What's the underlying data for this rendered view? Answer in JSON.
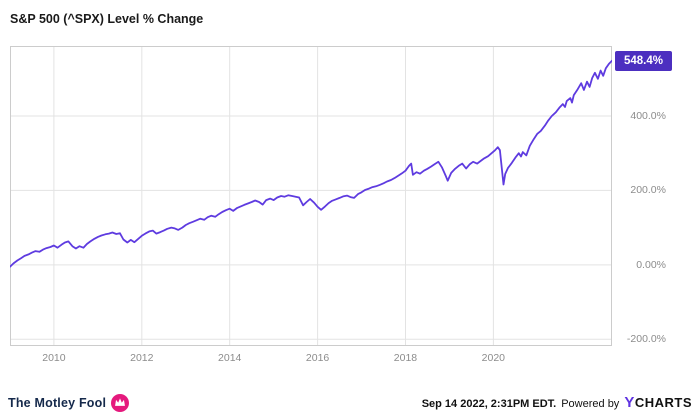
{
  "title": "S&P 500 (^SPX) Level % Change",
  "badge": {
    "label": "548.4%"
  },
  "footer": {
    "brand": "The Motley Fool",
    "timestamp": "Sep 14 2022, 2:31PM EDT.",
    "powered_by": "Powered by",
    "ycharts_y": "Y",
    "ycharts_rest": "CHARTS"
  },
  "colors": {
    "line": "#5E3BE0",
    "badge_bg": "#4C2FC0",
    "grid": "#E3E3E3",
    "border": "#CCCCCC",
    "axis_text": "#8C8C8C",
    "title_text": "#1A1A1A",
    "brand_navy": "#15294B",
    "brand_magenta": "#E5197D",
    "ycharts_purple": "#5F33E1",
    "footer_text": "#111111"
  },
  "chart_data": {
    "type": "line",
    "title": "S&P 500 (^SPX) Level % Change",
    "xlabel": "",
    "ylabel": "% Change",
    "xlim": [
      2009.0,
      2022.7
    ],
    "ylim": [
      -218,
      588
    ],
    "x_ticks": [
      2010,
      2012,
      2014,
      2016,
      2018,
      2020
    ],
    "y_ticks": [
      400,
      200,
      0,
      -200
    ],
    "y_tick_labels": [
      "400.0%",
      "200.0%",
      "0.00%",
      "-200.0%"
    ],
    "grid": true,
    "legend": "none",
    "last_value_label": "548.4%",
    "series": [
      {
        "name": "S&P 500 (^SPX) Level % Change",
        "points": [
          [
            2009.0,
            -5
          ],
          [
            2009.08,
            4
          ],
          [
            2009.17,
            12
          ],
          [
            2009.25,
            18
          ],
          [
            2009.33,
            24
          ],
          [
            2009.42,
            28
          ],
          [
            2009.5,
            33
          ],
          [
            2009.58,
            37
          ],
          [
            2009.67,
            35
          ],
          [
            2009.75,
            41
          ],
          [
            2009.83,
            45
          ],
          [
            2009.92,
            48
          ],
          [
            2010.0,
            52
          ],
          [
            2010.08,
            46
          ],
          [
            2010.17,
            54
          ],
          [
            2010.25,
            60
          ],
          [
            2010.33,
            63
          ],
          [
            2010.42,
            50
          ],
          [
            2010.5,
            44
          ],
          [
            2010.58,
            50
          ],
          [
            2010.67,
            46
          ],
          [
            2010.75,
            56
          ],
          [
            2010.83,
            63
          ],
          [
            2010.92,
            70
          ],
          [
            2011.0,
            75
          ],
          [
            2011.08,
            79
          ],
          [
            2011.17,
            82
          ],
          [
            2011.25,
            84
          ],
          [
            2011.33,
            87
          ],
          [
            2011.42,
            83
          ],
          [
            2011.5,
            85
          ],
          [
            2011.58,
            68
          ],
          [
            2011.67,
            60
          ],
          [
            2011.75,
            67
          ],
          [
            2011.83,
            61
          ],
          [
            2011.92,
            70
          ],
          [
            2012.0,
            78
          ],
          [
            2012.08,
            84
          ],
          [
            2012.17,
            90
          ],
          [
            2012.25,
            92
          ],
          [
            2012.33,
            84
          ],
          [
            2012.42,
            88
          ],
          [
            2012.5,
            92
          ],
          [
            2012.58,
            97
          ],
          [
            2012.67,
            100
          ],
          [
            2012.75,
            98
          ],
          [
            2012.83,
            94
          ],
          [
            2012.92,
            100
          ],
          [
            2013.0,
            107
          ],
          [
            2013.08,
            112
          ],
          [
            2013.17,
            116
          ],
          [
            2013.25,
            120
          ],
          [
            2013.33,
            124
          ],
          [
            2013.42,
            121
          ],
          [
            2013.5,
            128
          ],
          [
            2013.58,
            132
          ],
          [
            2013.67,
            129
          ],
          [
            2013.75,
            136
          ],
          [
            2013.83,
            142
          ],
          [
            2013.92,
            147
          ],
          [
            2014.0,
            151
          ],
          [
            2014.08,
            145
          ],
          [
            2014.17,
            153
          ],
          [
            2014.25,
            157
          ],
          [
            2014.33,
            161
          ],
          [
            2014.42,
            165
          ],
          [
            2014.5,
            169
          ],
          [
            2014.58,
            173
          ],
          [
            2014.67,
            169
          ],
          [
            2014.75,
            162
          ],
          [
            2014.83,
            174
          ],
          [
            2014.92,
            178
          ],
          [
            2015.0,
            174
          ],
          [
            2015.08,
            181
          ],
          [
            2015.17,
            185
          ],
          [
            2015.25,
            183
          ],
          [
            2015.33,
            187
          ],
          [
            2015.42,
            185
          ],
          [
            2015.5,
            183
          ],
          [
            2015.58,
            181
          ],
          [
            2015.67,
            160
          ],
          [
            2015.75,
            169
          ],
          [
            2015.83,
            177
          ],
          [
            2015.92,
            167
          ],
          [
            2016.0,
            156
          ],
          [
            2016.08,
            148
          ],
          [
            2016.17,
            157
          ],
          [
            2016.25,
            166
          ],
          [
            2016.33,
            172
          ],
          [
            2016.42,
            176
          ],
          [
            2016.5,
            180
          ],
          [
            2016.58,
            184
          ],
          [
            2016.67,
            186
          ],
          [
            2016.75,
            182
          ],
          [
            2016.83,
            180
          ],
          [
            2016.92,
            190
          ],
          [
            2017.0,
            195
          ],
          [
            2017.08,
            201
          ],
          [
            2017.17,
            205
          ],
          [
            2017.25,
            209
          ],
          [
            2017.33,
            211
          ],
          [
            2017.42,
            215
          ],
          [
            2017.5,
            219
          ],
          [
            2017.58,
            224
          ],
          [
            2017.67,
            228
          ],
          [
            2017.75,
            233
          ],
          [
            2017.83,
            239
          ],
          [
            2017.92,
            246
          ],
          [
            2018.0,
            253
          ],
          [
            2018.08,
            266
          ],
          [
            2018.13,
            272
          ],
          [
            2018.17,
            242
          ],
          [
            2018.25,
            249
          ],
          [
            2018.33,
            245
          ],
          [
            2018.42,
            253
          ],
          [
            2018.5,
            258
          ],
          [
            2018.58,
            264
          ],
          [
            2018.67,
            271
          ],
          [
            2018.75,
            277
          ],
          [
            2018.83,
            262
          ],
          [
            2018.92,
            238
          ],
          [
            2018.96,
            226
          ],
          [
            2019.04,
            247
          ],
          [
            2019.13,
            258
          ],
          [
            2019.21,
            266
          ],
          [
            2019.29,
            272
          ],
          [
            2019.38,
            259
          ],
          [
            2019.46,
            270
          ],
          [
            2019.54,
            277
          ],
          [
            2019.63,
            272
          ],
          [
            2019.71,
            279
          ],
          [
            2019.79,
            286
          ],
          [
            2019.88,
            292
          ],
          [
            2019.96,
            300
          ],
          [
            2020.04,
            308
          ],
          [
            2020.1,
            316
          ],
          [
            2020.15,
            308
          ],
          [
            2020.19,
            262
          ],
          [
            2020.23,
            216
          ],
          [
            2020.27,
            244
          ],
          [
            2020.33,
            260
          ],
          [
            2020.42,
            274
          ],
          [
            2020.5,
            288
          ],
          [
            2020.58,
            300
          ],
          [
            2020.63,
            291
          ],
          [
            2020.67,
            303
          ],
          [
            2020.75,
            294
          ],
          [
            2020.83,
            320
          ],
          [
            2020.92,
            338
          ],
          [
            2021.0,
            352
          ],
          [
            2021.08,
            360
          ],
          [
            2021.17,
            374
          ],
          [
            2021.25,
            388
          ],
          [
            2021.33,
            400
          ],
          [
            2021.42,
            410
          ],
          [
            2021.5,
            422
          ],
          [
            2021.58,
            432
          ],
          [
            2021.63,
            424
          ],
          [
            2021.67,
            440
          ],
          [
            2021.75,
            448
          ],
          [
            2021.79,
            436
          ],
          [
            2021.83,
            456
          ],
          [
            2021.92,
            472
          ],
          [
            2022.0,
            488
          ],
          [
            2022.06,
            470
          ],
          [
            2022.13,
            492
          ],
          [
            2022.19,
            478
          ],
          [
            2022.25,
            502
          ],
          [
            2022.31,
            516
          ],
          [
            2022.38,
            500
          ],
          [
            2022.44,
            522
          ],
          [
            2022.5,
            508
          ],
          [
            2022.56,
            528
          ],
          [
            2022.63,
            540
          ],
          [
            2022.7,
            548.4
          ]
        ]
      }
    ]
  }
}
